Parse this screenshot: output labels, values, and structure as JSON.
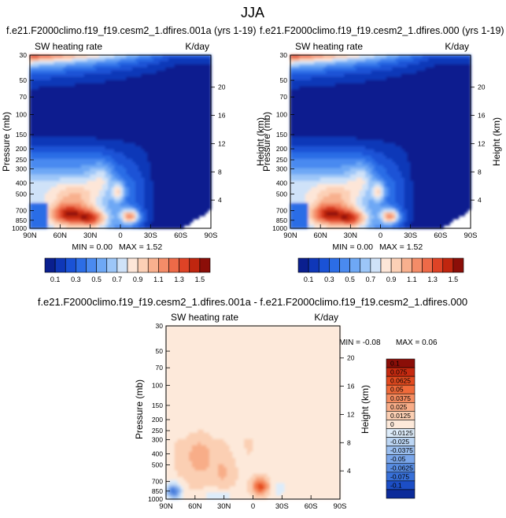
{
  "figure": {
    "title": "JJA"
  },
  "chart_data": [
    {
      "type": "heatmap",
      "id": "panel_a",
      "title": "f.e21.F2000climo.f19_f19.cesm2_1.dfires.001a (yrs 1-19)",
      "left_string": "SW heating rate",
      "right_string": "K/day",
      "ylabel": "Pressure (mb)",
      "y2label": "Height (km)",
      "x_tick_labels": [
        "90N",
        "60N",
        "30N",
        "0",
        "30S",
        "60S",
        "90S"
      ],
      "x_tick_values": [
        90,
        60,
        30,
        0,
        -30,
        -60,
        -90
      ],
      "y_tick_labels": [
        "30",
        "50",
        "70",
        "100",
        "150",
        "200",
        "250",
        "300",
        "400",
        "500",
        "700",
        "850",
        "1000"
      ],
      "y_tick_values": [
        30,
        50,
        70,
        100,
        150,
        200,
        250,
        300,
        400,
        500,
        700,
        850,
        1000
      ],
      "y2_tick_labels": [
        "20",
        "16",
        "12",
        "8",
        "4"
      ],
      "y2_tick_values": [
        20,
        16,
        12,
        8,
        4
      ],
      "xlim": [
        90,
        -90
      ],
      "ylim": [
        30,
        1000
      ],
      "min_label": "MIN =  0.00",
      "max_label": "MAX =  1.52",
      "min": 0.0,
      "max": 1.52,
      "colorbar": {
        "orientation": "horizontal",
        "labels": [
          "0.1",
          "0.3",
          "0.5",
          "0.7",
          "0.9",
          "1.1",
          "1.3",
          "1.5"
        ],
        "levels": [
          0.1,
          0.2,
          0.3,
          0.4,
          0.5,
          0.6,
          0.7,
          0.8,
          0.9,
          1.0,
          1.1,
          1.2,
          1.3,
          1.4,
          1.5
        ]
      }
    },
    {
      "type": "heatmap",
      "id": "panel_b",
      "title": "f.e21.F2000climo.f19_f19.cesm2_1.dfires.000 (yrs 1-19)",
      "left_string": "SW heating rate",
      "right_string": "K/day",
      "ylabel": "Pressure (mb)",
      "y2label": "Height (km)",
      "x_tick_labels": [
        "90N",
        "60N",
        "30N",
        "0",
        "30S",
        "60S",
        "90S"
      ],
      "x_tick_values": [
        90,
        60,
        30,
        0,
        -30,
        -60,
        -90
      ],
      "y_tick_labels": [
        "30",
        "50",
        "70",
        "100",
        "150",
        "200",
        "250",
        "300",
        "400",
        "500",
        "700",
        "850",
        "1000"
      ],
      "y_tick_values": [
        30,
        50,
        70,
        100,
        150,
        200,
        250,
        300,
        400,
        500,
        700,
        850,
        1000
      ],
      "y2_tick_labels": [
        "20",
        "16",
        "12",
        "8",
        "4"
      ],
      "y2_tick_values": [
        20,
        16,
        12,
        8,
        4
      ],
      "xlim": [
        90,
        -90
      ],
      "ylim": [
        30,
        1000
      ],
      "min_label": "MIN =  0.00",
      "max_label": "MAX =  1.52",
      "min": 0.0,
      "max": 1.52,
      "colorbar": {
        "orientation": "horizontal",
        "labels": [
          "0.1",
          "0.3",
          "0.5",
          "0.7",
          "0.9",
          "1.1",
          "1.3",
          "1.5"
        ],
        "levels": [
          0.1,
          0.2,
          0.3,
          0.4,
          0.5,
          0.6,
          0.7,
          0.8,
          0.9,
          1.0,
          1.1,
          1.2,
          1.3,
          1.4,
          1.5
        ]
      }
    },
    {
      "type": "heatmap",
      "id": "panel_diff",
      "title": "f.e21.F2000climo.f19_f19.cesm2_1.dfires.001a - f.e21.F2000climo.f19_f19.cesm2_1.dfires.000",
      "left_string": "SW heating rate",
      "right_string": "K/day",
      "ylabel": "Pressure (mb)",
      "y2label": "Height (km)",
      "x_tick_labels": [
        "90N",
        "60N",
        "30N",
        "0",
        "30S",
        "60S",
        "90S"
      ],
      "x_tick_values": [
        90,
        60,
        30,
        0,
        -30,
        -60,
        -90
      ],
      "y_tick_labels": [
        "30",
        "50",
        "70",
        "100",
        "150",
        "200",
        "250",
        "300",
        "400",
        "500",
        "700",
        "850",
        "1000"
      ],
      "y_tick_values": [
        30,
        50,
        70,
        100,
        150,
        200,
        250,
        300,
        400,
        500,
        700,
        850,
        1000
      ],
      "y2_tick_labels": [
        "20",
        "16",
        "12",
        "8",
        "4"
      ],
      "y2_tick_values": [
        20,
        16,
        12,
        8,
        4
      ],
      "xlim": [
        90,
        -90
      ],
      "ylim": [
        30,
        1000
      ],
      "min_label": "MIN = -0.08",
      "max_label": "MAX =  0.06",
      "min": -0.08,
      "max": 0.06,
      "colorbar": {
        "orientation": "vertical",
        "labels": [
          "0.1",
          "0.075",
          "0.0625",
          "0.05",
          "0.0375",
          "0.025",
          "0.0125",
          "0",
          "-0.0125",
          "-0.025",
          "-0.0375",
          "-0.05",
          "-0.0625",
          "-0.075",
          "-0.1"
        ],
        "levels": [
          0.1,
          0.075,
          0.0625,
          0.05,
          0.0375,
          0.025,
          0.0125,
          0,
          -0.0125,
          -0.025,
          -0.0375,
          -0.05,
          -0.0625,
          -0.075,
          -0.1
        ]
      }
    }
  ],
  "palettes": {
    "abs": [
      "#0a1f8f",
      "#0f37b8",
      "#1a52d6",
      "#2c6de6",
      "#4a8af0",
      "#6ea8f5",
      "#9cc6f8",
      "#cfe2f8",
      "#fde6d8",
      "#fcd0b6",
      "#f8b08e",
      "#f48c68",
      "#ee6a48",
      "#de4326",
      "#c0260f",
      "#8b0e08"
    ],
    "diff": [
      "#8b0e08",
      "#c62a10",
      "#e34a1f",
      "#f06a3a",
      "#f58c60",
      "#f8ad88",
      "#fbcfb3",
      "#fde9da",
      "#ddecfa",
      "#bcd6f4",
      "#9bbff0",
      "#7aa6ea",
      "#588ce2",
      "#3870d8",
      "#1c4ec6",
      "#0c2b9a"
    ]
  }
}
